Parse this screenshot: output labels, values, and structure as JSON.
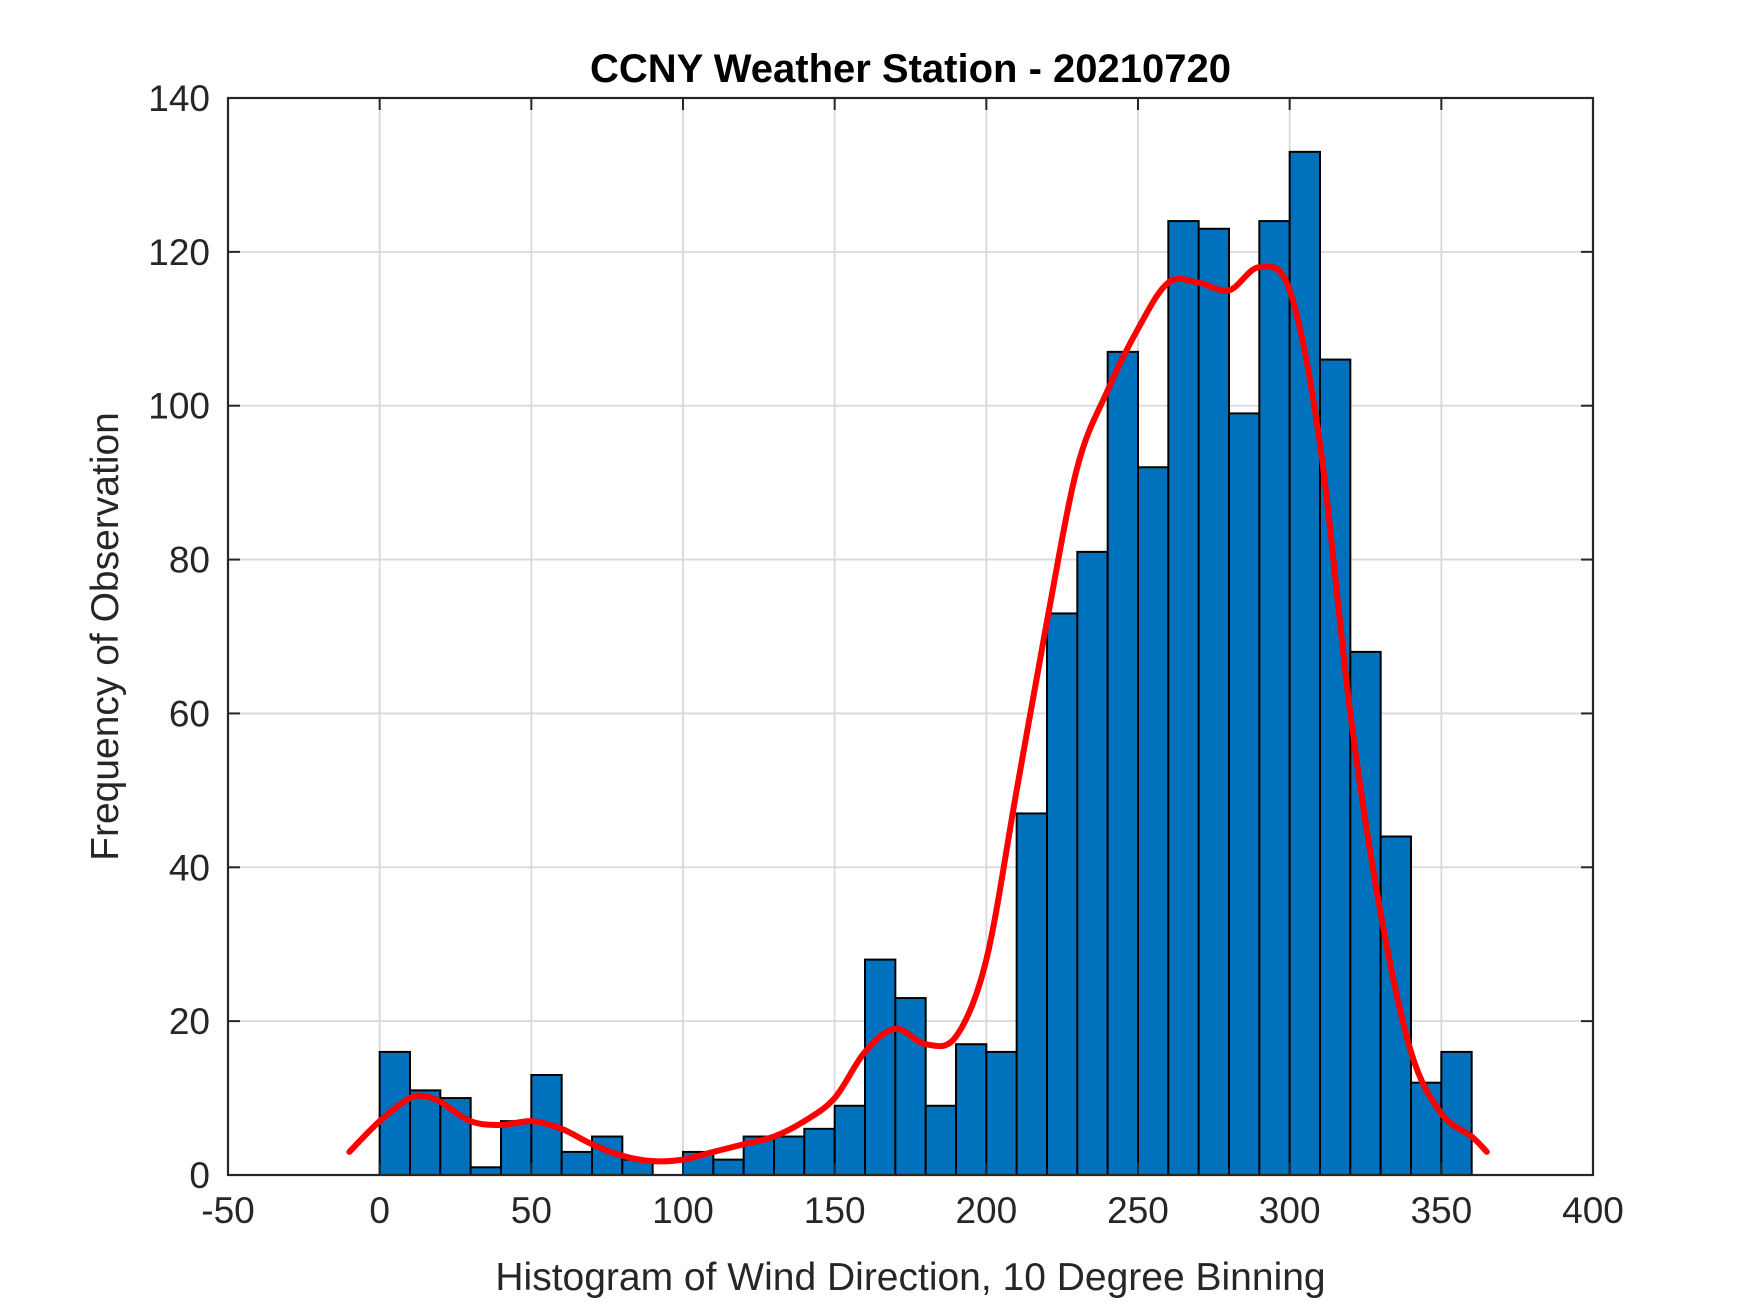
{
  "chart_data": {
    "type": "bar",
    "title": "CCNY Weather Station - 20210720",
    "xlabel": "Histogram of Wind Direction, 10 Degree Binning",
    "ylabel": "Frequency of Observation",
    "xlim": [
      -50,
      400
    ],
    "ylim": [
      0,
      140
    ],
    "xticks": [
      -50,
      0,
      50,
      100,
      150,
      200,
      250,
      300,
      350,
      400
    ],
    "yticks": [
      0,
      20,
      40,
      60,
      80,
      100,
      120,
      140
    ],
    "grid": true,
    "bin_width": 10,
    "bin_edges_start": [
      0,
      10,
      20,
      30,
      40,
      50,
      60,
      70,
      80,
      90,
      100,
      110,
      120,
      130,
      140,
      150,
      160,
      170,
      180,
      190,
      200,
      210,
      220,
      230,
      240,
      250,
      260,
      270,
      280,
      290,
      300,
      310,
      320,
      330,
      340,
      350
    ],
    "values": [
      16,
      11,
      10,
      1,
      7,
      13,
      3,
      5,
      2,
      0,
      3,
      2,
      5,
      5,
      6,
      9,
      28,
      23,
      9,
      17,
      16,
      47,
      73,
      81,
      107,
      92,
      124,
      123,
      99,
      124,
      133,
      106,
      68,
      44,
      12,
      16
    ],
    "fit_curve": {
      "x": [
        -10,
        0,
        10,
        15,
        20,
        30,
        40,
        50,
        60,
        70,
        80,
        90,
        100,
        110,
        120,
        130,
        140,
        150,
        160,
        170,
        180,
        190,
        200,
        210,
        220,
        230,
        240,
        250,
        260,
        270,
        280,
        290,
        300,
        310,
        320,
        330,
        340,
        350,
        360,
        365
      ],
      "y": [
        3,
        7,
        10,
        10.2,
        9.5,
        7,
        6.5,
        7,
        6,
        4,
        2.5,
        1.8,
        2,
        3,
        4,
        5,
        7,
        10,
        16,
        19,
        17,
        18,
        28,
        50,
        72,
        92,
        102,
        110,
        116,
        116,
        115,
        118,
        115,
        95,
        60,
        34,
        16,
        8,
        5,
        3
      ]
    },
    "colors": {
      "bar": "#0072BD",
      "fit": "#ff0000"
    }
  }
}
